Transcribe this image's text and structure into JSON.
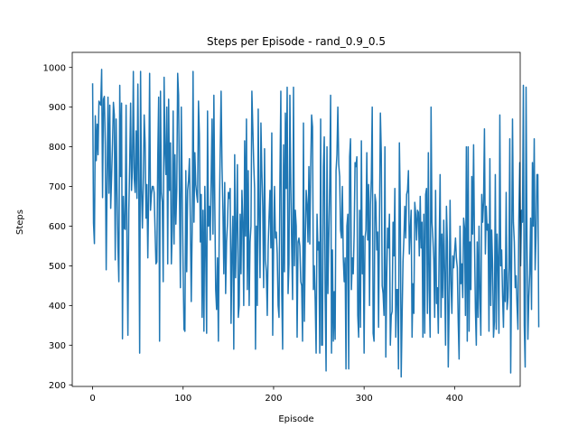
{
  "chart_data": {
    "type": "line",
    "title": "Steps per Episode - rand_0.9_0.5",
    "xlabel": "Episode",
    "ylabel": "Steps",
    "xlim": [
      -22.5,
      472.5
    ],
    "ylim": [
      196,
      1038
    ],
    "xticks": [
      0,
      100,
      200,
      300,
      400
    ],
    "yticks": [
      200,
      300,
      400,
      500,
      600,
      700,
      800,
      900,
      1000
    ],
    "grid": false,
    "line_color": "#1f77b4",
    "series": [
      {
        "values": [
          960,
          608,
          556,
          878,
          765,
          857,
          780,
          915,
          910,
          905,
          995,
          672,
          920,
          927,
          806,
          490,
          715,
          925,
          683,
          905,
          645,
          725,
          808,
          912,
          880,
          515,
          870,
          690,
          548,
          460,
          955,
          725,
          910,
          316,
          675,
          595,
          592,
          905,
          545,
          325,
          638,
          760,
          910,
          690,
          748,
          990,
          720,
          685,
          840,
          670,
          958,
          705,
          280,
          990,
          695,
          595,
          710,
          880,
          810,
          620,
          705,
          520,
          690,
          985,
          640,
          680,
          700,
          700,
          685,
          590,
          505,
          510,
          770,
          925,
          310,
          940,
          685,
          660,
          460,
          975,
          790,
          730,
          900,
          505,
          920,
          690,
          810,
          505,
          590,
          890,
          555,
          780,
          605,
          690,
          985,
          930,
          680,
          445,
          900,
          695,
          495,
          340,
          335,
          740,
          485,
          690,
          715,
          770,
          615,
          410,
          590,
          990,
          610,
          785,
          705,
          680,
          660,
          915,
          830,
          560,
          680,
          370,
          640,
          335,
          700,
          530,
          330,
          890,
          600,
          650,
          565,
          720,
          870,
          580,
          930,
          660,
          440,
          390,
          520,
          310,
          620,
          790,
          940,
          750,
          640,
          480,
          710,
          430,
          560,
          605,
          685,
          670,
          695,
          355,
          535,
          625,
          290,
          780,
          470,
          600,
          755,
          370,
          400,
          630,
          480,
          690,
          610,
          400,
          815,
          575,
          870,
          440,
          740,
          400,
          560,
          600,
          940,
          850,
          760,
          695,
          290,
          600,
          400,
          895,
          620,
          470,
          860,
          740,
          650,
          445,
          795,
          515,
          485,
          375,
          550,
          625,
          690,
          545,
          835,
          325,
          550,
          700,
          570,
          585,
          530,
          400,
          370,
          720,
          940,
          435,
          290,
          805,
          485,
          885,
          695,
          950,
          430,
          505,
          930,
          705,
          550,
          415,
          950,
          500,
          640,
          600,
          320,
          560,
          570,
          550,
          460,
          450,
          310,
          860,
          360,
          560,
          690,
          655,
          560,
          750,
          555,
          745,
          880,
          850,
          440,
          500,
          410,
          280,
          630,
          540,
          560,
          280,
          870,
          300,
          300,
          750,
          825,
          420,
          235,
          800,
          430,
          570,
          705,
          930,
          280,
          540,
          310,
          435,
          315,
          740,
          780,
          900,
          755,
          725,
          590,
          570,
          700,
          520,
          460,
          520,
          240,
          600,
          630,
          240,
          775,
          820,
          440,
          520,
          480,
          580,
          760,
          750,
          775,
          375,
          320,
          640,
          345,
          815,
          480,
          575,
          280,
          570,
          590,
          785,
          565,
          705,
          400,
          655,
          720,
          900,
          330,
          310,
          680,
          660,
          540,
          585,
          345,
          610,
          885,
          785,
          450,
          430,
          375,
          800,
          270,
          470,
          595,
          545,
          630,
          300,
          375,
          385,
          610,
          525,
          695,
          320,
          440,
          440,
          240,
          810,
          650,
          220,
          375,
          510,
          570,
          650,
          570,
          680,
          690,
          740,
          530,
          590,
          640,
          320,
          455,
          380,
          660,
          630,
          565,
          640,
          635,
          525,
          675,
          545,
          610,
          320,
          630,
          330,
          680,
          695,
          380,
          785,
          440,
          320,
          900,
          610,
          570,
          515,
          370,
          690,
          405,
          445,
          330,
          555,
          730,
          370,
          580,
          420,
          615,
          485,
          300,
          650,
          560,
          245,
          400,
          665,
          460,
          380,
          525,
          495,
          535,
          570,
          520,
          495,
          360,
          265,
          600,
          455,
          505,
          420,
          620,
          595,
          375,
          800,
          310,
          800,
          335,
          560,
          440,
          725,
          580,
          805,
          560,
          390,
          300,
          560,
          370,
          600,
          420,
          325,
          680,
          610,
          660,
          845,
          530,
          650,
          590,
          605,
          335,
          770,
          400,
          590,
          500,
          320,
          360,
          730,
          340,
          580,
          510,
          330,
          880,
          500,
          540,
          425,
          345,
          490,
          410,
          685,
          390,
          420,
          495,
          820,
          230,
          500,
          870,
          610,
          560,
          445,
          475,
          400,
          340,
          620,
          760,
          500,
          640,
          610,
          955,
          350,
          245,
          950,
          565,
          315,
          420,
          480,
          620,
          390,
          760,
          600,
          820,
          490,
          575,
          730,
          730,
          345
        ]
      }
    ]
  }
}
